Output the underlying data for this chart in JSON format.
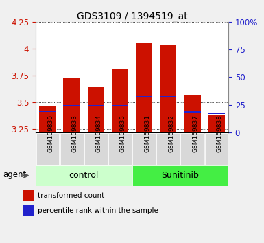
{
  "title": "GDS3109 / 1394519_at",
  "samples": [
    "GSM159830",
    "GSM159833",
    "GSM159834",
    "GSM159835",
    "GSM159831",
    "GSM159832",
    "GSM159837",
    "GSM159838"
  ],
  "bar_tops": [
    3.46,
    3.73,
    3.64,
    3.81,
    4.06,
    4.03,
    3.57,
    3.38
  ],
  "bar_bottom": 3.22,
  "blue_vals": [
    3.42,
    3.47,
    3.47,
    3.47,
    3.55,
    3.55,
    3.41,
    3.4
  ],
  "ylim": [
    3.22,
    4.25
  ],
  "yticks_left": [
    3.25,
    3.5,
    3.75,
    4.0,
    4.25
  ],
  "yticks_right": [
    0,
    25,
    50,
    75,
    100
  ],
  "bar_color": "#cc1100",
  "blue_color": "#2222cc",
  "control_color": "#ccffcc",
  "sunitinib_color": "#44ee44",
  "control_label": "control",
  "sunitinib_label": "Sunitinib",
  "agent_label": "agent",
  "legend_red": "transformed count",
  "legend_blue": "percentile rank within the sample",
  "axis_color_left": "#cc1100",
  "axis_color_right": "#2222cc",
  "sample_box_color": "#d8d8d8",
  "plot_bg": "#ffffff",
  "fig_bg": "#f0f0f0"
}
